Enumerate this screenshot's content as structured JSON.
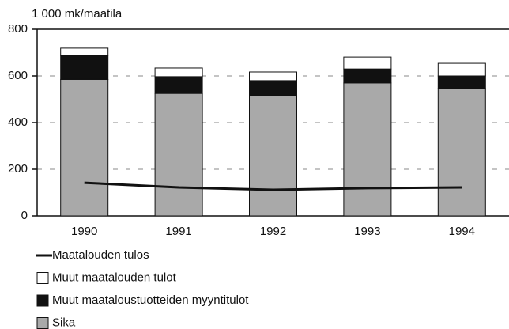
{
  "chart_data": {
    "type": "bar",
    "stacked": true,
    "y_axis_label": "1 000 mk/maatila",
    "categories": [
      "1990",
      "1991",
      "1992",
      "1993",
      "1994"
    ],
    "series": [
      {
        "name": "Maatalouden tulos",
        "type": "line",
        "color": "#111111",
        "values": [
          142,
          122,
          112,
          119,
          122
        ]
      },
      {
        "name": "Muut maatalouden tulot",
        "color": "#ffffff",
        "values": [
          31,
          37,
          37,
          51,
          54
        ]
      },
      {
        "name": "Muut maataloustuotteiden myyntitulot",
        "color": "#111111",
        "values": [
          103,
          72,
          65,
          60,
          54
        ]
      },
      {
        "name": "Sika",
        "color": "#a9a9a9",
        "values": [
          585,
          525,
          515,
          570,
          546
        ]
      }
    ],
    "ylim": [
      0,
      800
    ],
    "yticks": [
      0,
      200,
      400,
      600,
      800
    ],
    "grid": true
  }
}
